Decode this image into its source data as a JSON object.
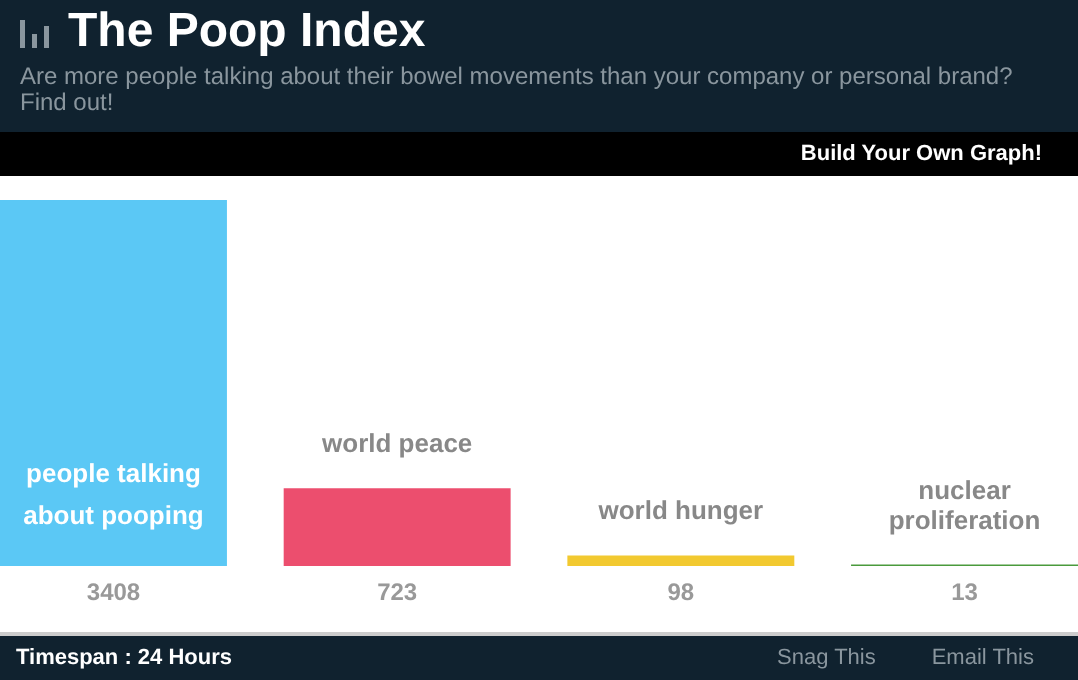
{
  "chart_data": {
    "type": "bar",
    "title": "The Poop Index",
    "subtitle": "Are more people talking about their bowel movements than your company or personal brand? Find out!",
    "categories": [
      "people talking about pooping",
      "world peace",
      "world hunger",
      "nuclear proliferation"
    ],
    "values": [
      3408,
      723,
      98,
      13
    ],
    "colors": [
      "#5bc8f5",
      "#ec4e6e",
      "#f2c930",
      "#4a9a3c"
    ],
    "data_labels": true,
    "annotations": [
      "Build Your Own Graph!",
      "Timespan : 24 Hours",
      "Snag This",
      "Email This"
    ]
  }
}
